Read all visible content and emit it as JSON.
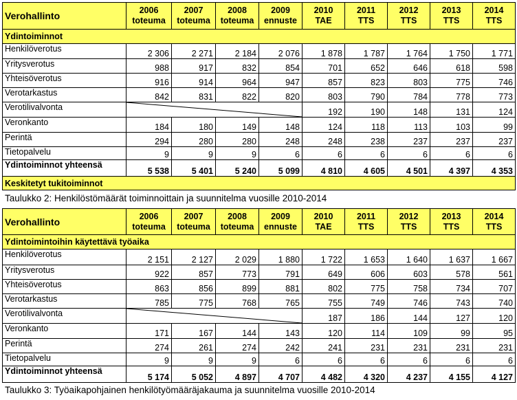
{
  "table1": {
    "org": "Verohallinto",
    "years": [
      {
        "year": "2006",
        "sub": "toteuma"
      },
      {
        "year": "2007",
        "sub": "toteuma"
      },
      {
        "year": "2008",
        "sub": "toteuma"
      },
      {
        "year": "2009",
        "sub": "ennuste"
      },
      {
        "year": "2010",
        "sub": "TAE"
      },
      {
        "year": "2011",
        "sub": "TTS"
      },
      {
        "year": "2012",
        "sub": "TTS"
      },
      {
        "year": "2013",
        "sub": "TTS"
      },
      {
        "year": "2014",
        "sub": "TTS"
      }
    ],
    "section_core": "Ydintoiminnot",
    "rows": [
      {
        "label": "Henkilöverotus",
        "values": [
          "2 306",
          "2 271",
          "2 184",
          "2 076",
          "1 878",
          "1 787",
          "1 764",
          "1 750",
          "1 771"
        ]
      },
      {
        "label": "Yritysverotus",
        "values": [
          "988",
          "917",
          "832",
          "854",
          "701",
          "652",
          "646",
          "618",
          "598"
        ]
      },
      {
        "label": "Yhteisöverotus",
        "values": [
          "916",
          "914",
          "964",
          "947",
          "857",
          "823",
          "803",
          "775",
          "746"
        ]
      },
      {
        "label": "Verotarkastus",
        "values": [
          "842",
          "831",
          "822",
          "820",
          "803",
          "790",
          "784",
          "778",
          "773"
        ]
      },
      {
        "label": "Verotilivalvonta",
        "values": [
          "",
          "",
          "",
          "",
          "192",
          "190",
          "148",
          "131",
          "124"
        ],
        "diagonal": 4
      },
      {
        "label": "Veronkanto",
        "values": [
          "184",
          "180",
          "149",
          "148",
          "124",
          "118",
          "113",
          "103",
          "99"
        ]
      },
      {
        "label": "Perintä",
        "values": [
          "294",
          "280",
          "280",
          "248",
          "248",
          "238",
          "237",
          "237",
          "237"
        ]
      },
      {
        "label": "Tietopalvelu",
        "values": [
          "9",
          "9",
          "9",
          "6",
          "6",
          "6",
          "6",
          "6",
          "6"
        ]
      }
    ],
    "total": {
      "label": "Ydintoiminnot yhteensä",
      "values": [
        "5 538",
        "5 401",
        "5 240",
        "5 099",
        "4 810",
        "4 605",
        "4 501",
        "4 397",
        "4 353"
      ]
    },
    "section_support": "Keskitetyt tukitoiminnot",
    "caption": "Taulukko 2: Henkilöstömäärät toiminnoittain ja suunnitelma vuosille 2010-2014"
  },
  "table2": {
    "org": "Verohallinto",
    "years": [
      {
        "year": "2006",
        "sub": "toteuma"
      },
      {
        "year": "2007",
        "sub": "toteuma"
      },
      {
        "year": "2008",
        "sub": "toteuma"
      },
      {
        "year": "2009",
        "sub": "ennuste"
      },
      {
        "year": "2010",
        "sub": "TAE"
      },
      {
        "year": "2011",
        "sub": "TTS"
      },
      {
        "year": "2012",
        "sub": "TTS"
      },
      {
        "year": "2013",
        "sub": "TTS"
      },
      {
        "year": "2014",
        "sub": "TTS"
      }
    ],
    "section_core": "Ydintoimintoihin käytettävä työaika",
    "rows": [
      {
        "label": "Henkilöverotus",
        "values": [
          "2 151",
          "2 127",
          "2 029",
          "1 880",
          "1 722",
          "1 653",
          "1 640",
          "1 637",
          "1 667"
        ]
      },
      {
        "label": "Yritysverotus",
        "values": [
          "922",
          "857",
          "773",
          "791",
          "649",
          "606",
          "603",
          "578",
          "561"
        ]
      },
      {
        "label": "Yhteisöverotus",
        "values": [
          "863",
          "856",
          "899",
          "881",
          "802",
          "775",
          "758",
          "734",
          "707"
        ]
      },
      {
        "label": "Verotarkastus",
        "values": [
          "785",
          "775",
          "768",
          "765",
          "755",
          "749",
          "746",
          "743",
          "740"
        ]
      },
      {
        "label": "Verotilivalvonta",
        "values": [
          "",
          "",
          "",
          "",
          "187",
          "186",
          "144",
          "127",
          "120"
        ],
        "diagonal": 4
      },
      {
        "label": "Veronkanto",
        "values": [
          "171",
          "167",
          "144",
          "143",
          "120",
          "114",
          "109",
          "99",
          "95"
        ]
      },
      {
        "label": "Perintä",
        "values": [
          "274",
          "261",
          "274",
          "242",
          "241",
          "231",
          "231",
          "231",
          "231"
        ]
      },
      {
        "label": "Tietopalvelu",
        "values": [
          "9",
          "9",
          "9",
          "6",
          "6",
          "6",
          "6",
          "6",
          "6"
        ]
      }
    ],
    "total": {
      "label": "Ydintoiminnot yhteensä",
      "values": [
        "5 174",
        "5 052",
        "4 897",
        "4 707",
        "4 482",
        "4 320",
        "4 237",
        "4 155",
        "4 127"
      ]
    },
    "caption": "Taulukko 3: Työaikapohjainen henkilötyömääräjakauma ja suunnitelma vuosille 2010-2014"
  }
}
